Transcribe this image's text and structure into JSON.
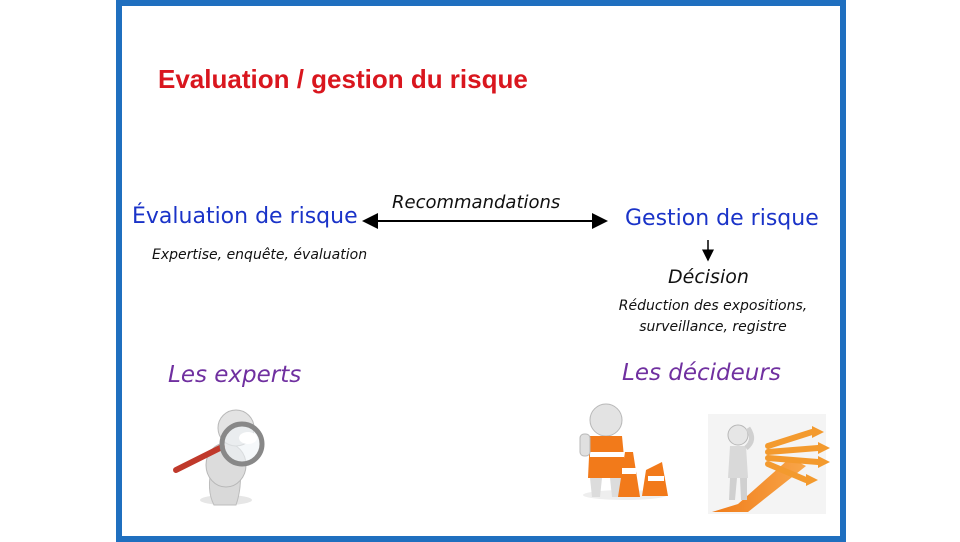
{
  "slide": {
    "title": "Evaluation / gestion du risque",
    "colors": {
      "title": "#d9161e",
      "frame": "#1f6fbf",
      "blue_text": "#1a33c8",
      "purple_text": "#7030a0"
    }
  },
  "diagram": {
    "left_node": {
      "label": "Évaluation de risque",
      "subtitle": "Expertise, enquête, évaluation"
    },
    "arrow_label": "Recommandations",
    "right_node": {
      "label": "Gestion de risque",
      "decision_label": "Décision",
      "decision_detail": "Réduction des expositions, surveillance, registre"
    },
    "roles": {
      "experts": "Les experts",
      "decideurs": "Les décideurs"
    }
  },
  "illustrations": [
    {
      "name": "expert-magnifier-figure",
      "icon": "magnifying-glass-person-icon"
    },
    {
      "name": "stop-cones-figure",
      "icon": "stop-hand-cones-icon"
    },
    {
      "name": "crossroads-figure",
      "icon": "thinking-person-crossroads-icon"
    }
  ]
}
